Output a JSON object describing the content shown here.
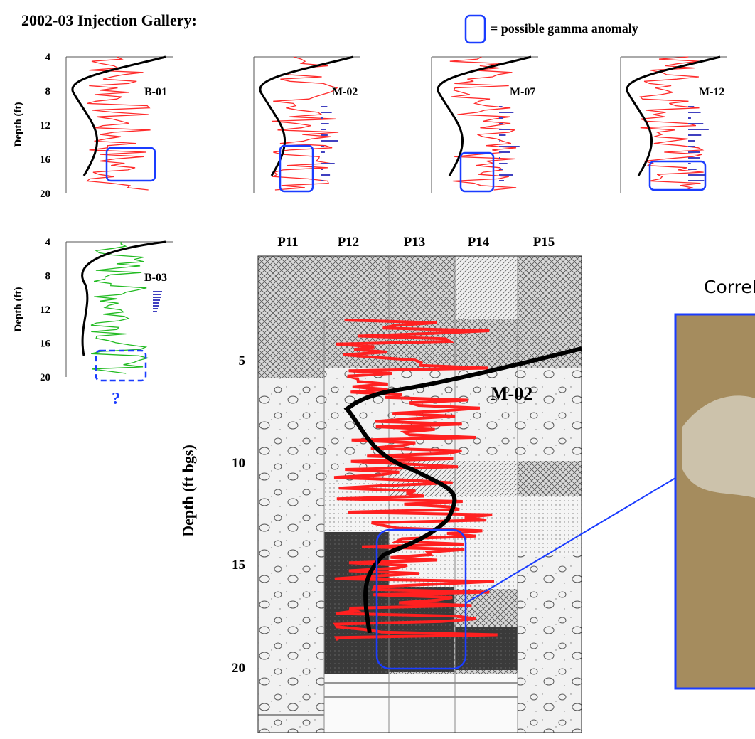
{
  "title": "2002-03 Injection Gallery:",
  "legend": "= possible gamma anomaly",
  "small_axis": {
    "label": "Depth (ft)",
    "ticks": [
      "4",
      "8",
      "12",
      "16",
      "20"
    ]
  },
  "small_panels": [
    {
      "label": "B-01"
    },
    {
      "label": "M-02"
    },
    {
      "label": "M-07"
    },
    {
      "label": "M-12"
    }
  ],
  "b03_panel": {
    "label": "B-03",
    "axis_label": "Depth (ft)",
    "ticks": [
      "4",
      "8",
      "12",
      "16",
      "20"
    ],
    "question": "?"
  },
  "section": {
    "columns": [
      "P11",
      "P12",
      "P13",
      "P14",
      "P15"
    ],
    "log_label": "M-02",
    "axis_label": "Depth (ft bgs)",
    "ticks": [
      "5",
      "10",
      "15",
      "20"
    ]
  },
  "photo": {
    "caption": "Correl"
  }
}
